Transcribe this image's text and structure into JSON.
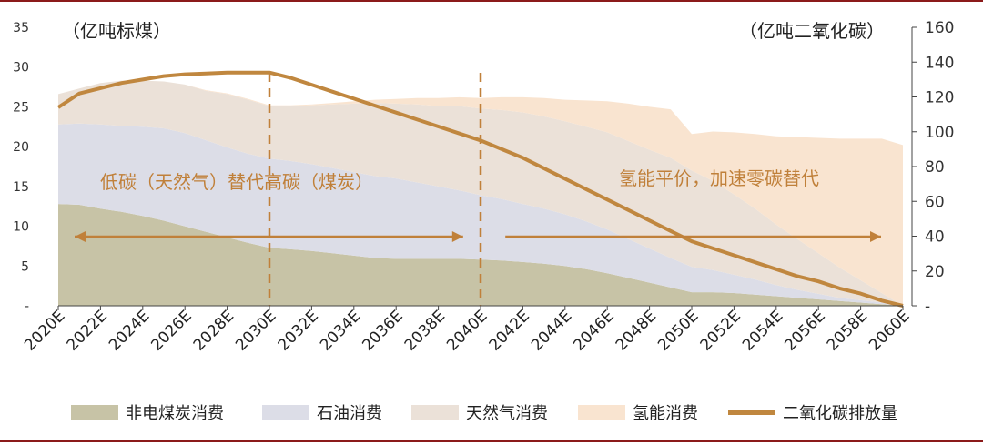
{
  "units": {
    "left": "（亿吨标煤）",
    "right": "（亿吨二氧化碳）"
  },
  "annotations": {
    "phase1": "低碳（天然气）替代高碳（煤炭）",
    "phase2": "氢能平价，加速零碳替代"
  },
  "colors": {
    "coal": "#c7c3a6",
    "oil": "#dcdde7",
    "gas": "#ebe1d8",
    "hydrogen": "#f9e4d0",
    "co2": "#c0873f",
    "annotation": "#c0803a",
    "rule": "#8b1a1a"
  },
  "chart_data": {
    "type": "area",
    "x": [
      "2020E",
      "2021E",
      "2022E",
      "2023E",
      "2024E",
      "2025E",
      "2026E",
      "2027E",
      "2028E",
      "2029E",
      "2030E",
      "2031E",
      "2032E",
      "2033E",
      "2034E",
      "2035E",
      "2036E",
      "2037E",
      "2038E",
      "2039E",
      "2040E",
      "2041E",
      "2042E",
      "2043E",
      "2044E",
      "2045E",
      "2046E",
      "2047E",
      "2048E",
      "2049E",
      "2050E",
      "2051E",
      "2052E",
      "2053E",
      "2054E",
      "2055E",
      "2056E",
      "2057E",
      "2058E",
      "2059E",
      "2060E"
    ],
    "xtick_labels": [
      "2020E",
      "2022E",
      "2024E",
      "2026E",
      "2028E",
      "2030E",
      "2032E",
      "2034E",
      "2036E",
      "2038E",
      "2040E",
      "2042E",
      "2044E",
      "2046E",
      "2048E",
      "2050E",
      "2052E",
      "2054E",
      "2056E",
      "2058E",
      "2060E"
    ],
    "y_left": {
      "lim": [
        0,
        35
      ],
      "ticks": [
        "-",
        "5",
        "10",
        "15",
        "20",
        "25",
        "30",
        "35"
      ],
      "tick_values": [
        0,
        5,
        10,
        15,
        20,
        25,
        30,
        35
      ]
    },
    "y_right": {
      "lim": [
        0,
        160
      ],
      "ticks": [
        "-",
        "20",
        "40",
        "60",
        "80",
        "100",
        "120",
        "140",
        "160"
      ],
      "tick_values": [
        0,
        20,
        40,
        60,
        80,
        100,
        120,
        140,
        160
      ]
    },
    "stacked": true,
    "series": [
      {
        "name": "非电煤炭消费",
        "axis": "left",
        "kind": "area",
        "values": [
          12.8,
          12.7,
          12.2,
          11.8,
          11.3,
          10.7,
          10.0,
          9.3,
          8.6,
          7.9,
          7.3,
          7.1,
          6.9,
          6.6,
          6.3,
          6.0,
          5.9,
          5.9,
          5.9,
          5.9,
          5.8,
          5.7,
          5.5,
          5.3,
          5.0,
          4.6,
          4.1,
          3.5,
          2.9,
          2.3,
          1.7,
          1.7,
          1.6,
          1.4,
          1.2,
          1.0,
          0.8,
          0.6,
          0.4,
          0.2,
          0.0
        ]
      },
      {
        "name": "石油消费",
        "axis": "left",
        "kind": "area",
        "values": [
          10.0,
          10.2,
          10.6,
          10.8,
          11.2,
          11.6,
          11.7,
          11.5,
          11.3,
          11.2,
          11.2,
          11.1,
          10.9,
          10.7,
          10.5,
          10.3,
          10.1,
          9.6,
          9.1,
          8.6,
          8.1,
          7.7,
          7.3,
          6.9,
          6.5,
          6.0,
          5.5,
          4.9,
          4.3,
          3.7,
          3.2,
          2.8,
          2.3,
          1.9,
          1.4,
          1.0,
          0.7,
          0.4,
          0.3,
          0.2,
          0.0
        ]
      },
      {
        "name": "天然气消费",
        "axis": "left",
        "kind": "area",
        "values": [
          3.8,
          4.4,
          5.2,
          5.7,
          5.8,
          5.9,
          6.1,
          6.2,
          6.7,
          6.8,
          6.6,
          6.9,
          7.4,
          8.0,
          8.6,
          9.2,
          9.4,
          9.8,
          10.1,
          10.6,
          10.9,
          11.2,
          11.5,
          11.6,
          11.7,
          11.9,
          12.2,
          12.3,
          12.4,
          12.6,
          12.1,
          11.2,
          10.1,
          8.9,
          7.6,
          6.4,
          5.1,
          3.8,
          2.5,
          1.2,
          0.0
        ]
      },
      {
        "name": "氢能消费",
        "axis": "left",
        "kind": "area",
        "values": [
          0.0,
          0.0,
          0.0,
          0.0,
          0.0,
          0.0,
          0.0,
          0.1,
          0.1,
          0.1,
          0.1,
          0.1,
          0.1,
          0.2,
          0.3,
          0.4,
          0.6,
          0.8,
          1.0,
          1.1,
          1.3,
          1.6,
          1.9,
          2.3,
          2.7,
          3.3,
          3.9,
          4.7,
          5.4,
          6.1,
          4.6,
          6.2,
          7.8,
          9.4,
          11.1,
          12.8,
          14.5,
          16.2,
          17.8,
          19.4,
          20.2
        ]
      },
      {
        "name": "二氧化碳排放量",
        "axis": "right",
        "kind": "line",
        "values": [
          114,
          122,
          125,
          128,
          130,
          132,
          133,
          133.5,
          134,
          134,
          134,
          131,
          127,
          123,
          119,
          115,
          111,
          107,
          103,
          99,
          95,
          90,
          85,
          79,
          73,
          67,
          61,
          55,
          49,
          43,
          37,
          33,
          29,
          25,
          21,
          17,
          14,
          10,
          7,
          3,
          0
        ]
      }
    ],
    "vlines": [
      "2030E",
      "2040E"
    ],
    "arrows": [
      {
        "from": "2020E",
        "to": "2039E",
        "direction": "both"
      },
      {
        "from": "2041E",
        "to": "2060E",
        "direction": "right"
      }
    ],
    "legend": [
      "非电煤炭消费",
      "石油消费",
      "天然气消费",
      "氢能消费",
      "二氧化碳排放量"
    ],
    "legend_position": "bottom",
    "grid": false
  }
}
